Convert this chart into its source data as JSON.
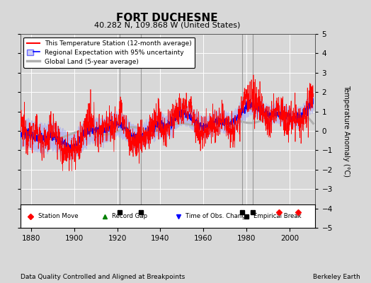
{
  "title": "FORT DUCHESNE",
  "subtitle": "40.282 N, 109.868 W (United States)",
  "ylabel": "Temperature Anomaly (°C)",
  "xlabel_note": "Data Quality Controlled and Aligned at Breakpoints",
  "credit": "Berkeley Earth",
  "ylim": [
    -5,
    5
  ],
  "xlim": [
    1875,
    2012
  ],
  "yticks": [
    -5,
    -4,
    -3,
    -2,
    -1,
    0,
    1,
    2,
    3,
    4,
    5
  ],
  "xticks": [
    1880,
    1900,
    1920,
    1940,
    1960,
    1980,
    2000
  ],
  "bg_color": "#d8d8d8",
  "plot_bg_color": "#d8d8d8",
  "grid_color": "#ffffff",
  "station_color": "red",
  "regional_color": "blue",
  "global_color": "#b0b0b0",
  "uncertainty_color": "#aaaaee",
  "legend_items": [
    "This Temperature Station (12-month average)",
    "Regional Expectation with 95% uncertainty",
    "Global Land (5-year average)"
  ],
  "marker_items": [
    {
      "label": "Station Move",
      "color": "red",
      "marker": "D"
    },
    {
      "label": "Record Gap",
      "color": "green",
      "marker": "^"
    },
    {
      "label": "Time of Obs. Change",
      "color": "blue",
      "marker": "v"
    },
    {
      "label": "Empirical Break",
      "color": "black",
      "marker": "s"
    }
  ],
  "station_moves": [
    1995,
    2004
  ],
  "record_gaps": [],
  "obs_changes": [],
  "empirical_breaks": [
    1921,
    1931,
    1978,
    1983
  ],
  "vlines": [
    1921,
    1931,
    1978,
    1983
  ],
  "marker_y": -4.2
}
